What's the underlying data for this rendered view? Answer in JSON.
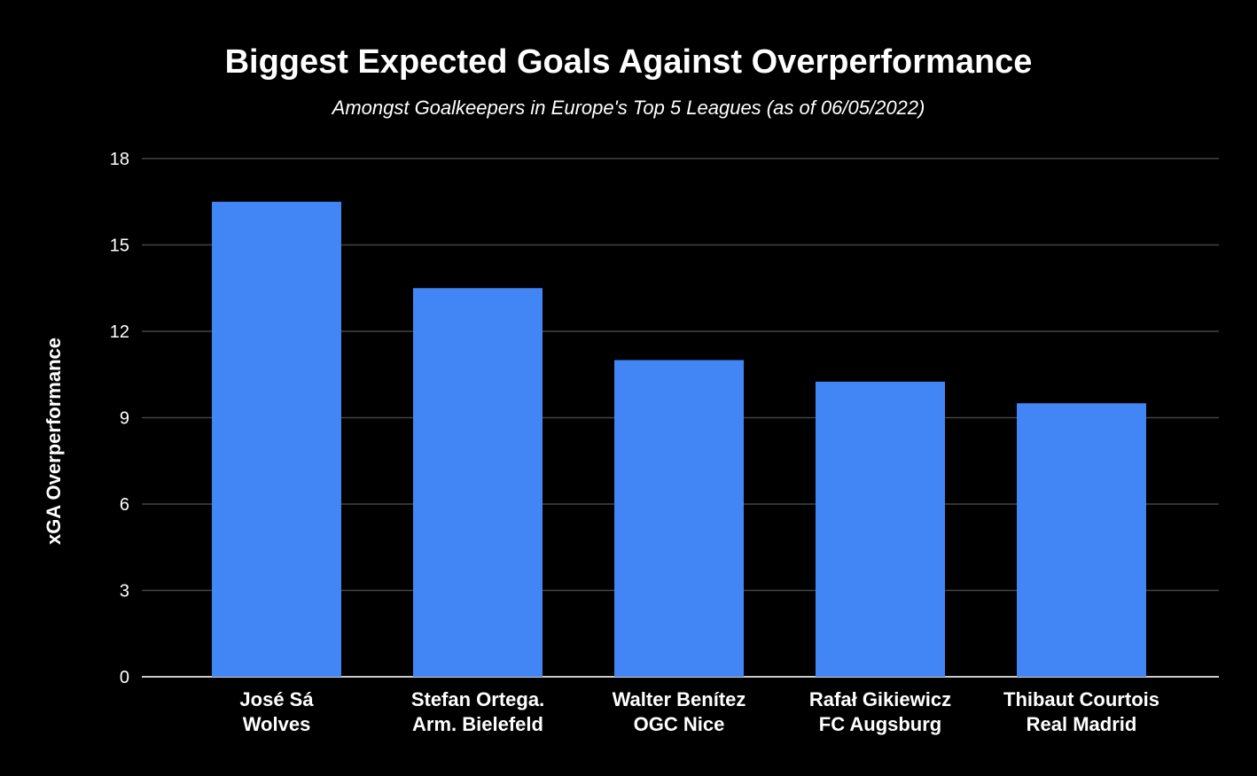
{
  "chart_data": {
    "type": "bar",
    "title": "Biggest Expected Goals Against Overperformance",
    "subtitle": "Amongst Goalkeepers in Europe's Top 5 Leagues (as of 06/05/2022)",
    "xlabel": "",
    "ylabel": "xGA Overperformance",
    "ylim": [
      0,
      18
    ],
    "yticks": [
      0,
      3,
      6,
      9,
      12,
      15,
      18
    ],
    "grid": true,
    "categories": [
      [
        "José Sá",
        "Wolves"
      ],
      [
        "Stefan Ortega.",
        "Arm. Bielefeld"
      ],
      [
        "Walter Benítez",
        "OGC Nice"
      ],
      [
        "Rafał Gikiewicz",
        "FC Augsburg"
      ],
      [
        "Thibaut Courtois",
        "Real Madrid"
      ]
    ],
    "values": [
      16.5,
      13.5,
      11.0,
      10.25,
      9.5
    ],
    "colors": {
      "bar": "#4285F4",
      "background": "#000000",
      "text": "#ffffff",
      "grid": "#444444"
    }
  }
}
